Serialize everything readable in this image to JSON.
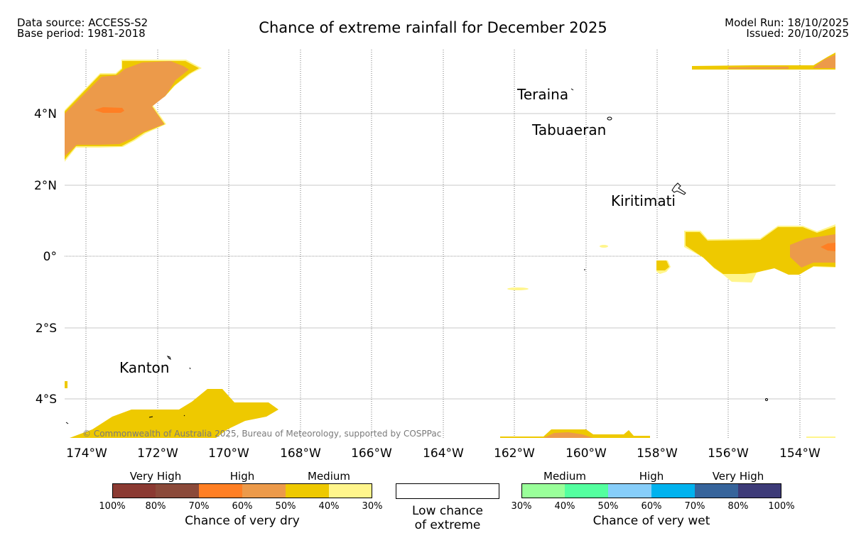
{
  "header": {
    "data_source": "Data source: ACCESS-S2",
    "base_period": "Base period: 1981-2018",
    "title": "Chance of extreme rainfall for December 2025",
    "model_run": "Model Run: 18/10/2025",
    "issued": "Issued: 20/10/2025"
  },
  "map": {
    "lat_labels": [
      "4°N",
      "2°N",
      "0°",
      "2°S",
      "4°S"
    ],
    "lon_labels": [
      "174°W",
      "172°W",
      "170°W",
      "168°W",
      "166°W",
      "164°W",
      "162°W",
      "160°W",
      "158°W",
      "156°W",
      "154°W"
    ],
    "places": [
      "Teraina",
      "Tabuaeran",
      "Kiritimati",
      "Kanton"
    ],
    "copyright": "© Commonwealth of Australia 2025, Bureau of Meteorology, supported by COSPPac"
  },
  "legend": {
    "dry": {
      "headers": [
        "Very High",
        "High",
        "Medium"
      ],
      "ticks": [
        "100%",
        "80%",
        "70%",
        "60%",
        "50%",
        "40%",
        "30%"
      ],
      "colors": [
        "#8b3a32",
        "#8b4a3a",
        "#ff7f24",
        "#ec9a4a",
        "#eec900",
        "#fff58c"
      ],
      "caption": "Chance of very dry"
    },
    "low": {
      "line1": "Low chance",
      "line2": "of extreme"
    },
    "wet": {
      "headers": [
        "Medium",
        "High",
        "Very High"
      ],
      "ticks": [
        "30%",
        "40%",
        "50%",
        "60%",
        "70%",
        "80%",
        "100%"
      ],
      "colors": [
        "#9aff9a",
        "#54ff9f",
        "#87cefa",
        "#00b2ee",
        "#36649b",
        "#3d3b78"
      ],
      "caption": "Chance of very wet"
    }
  }
}
